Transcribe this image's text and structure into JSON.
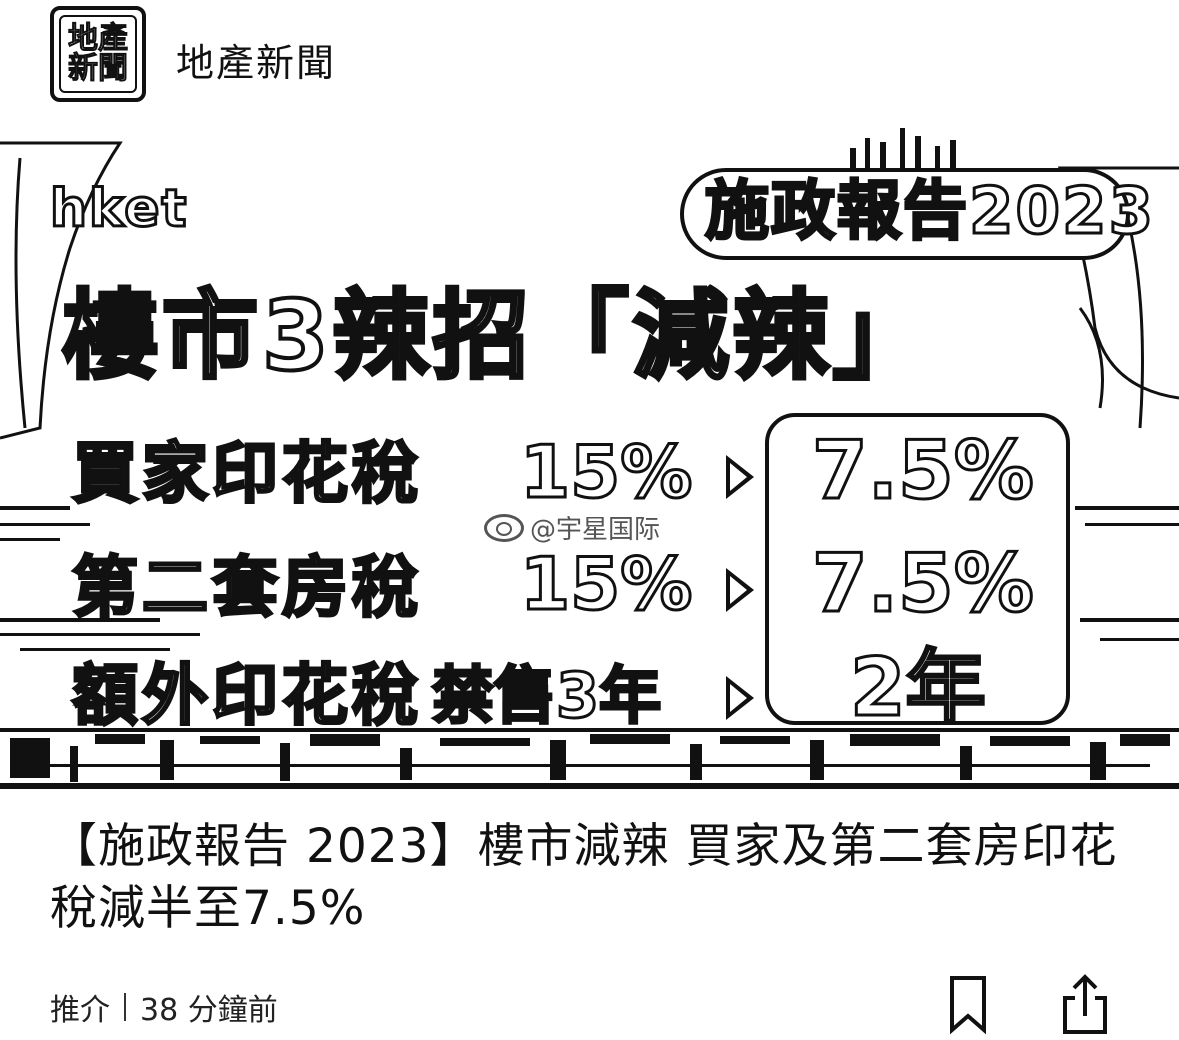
{
  "header": {
    "logo_icon": "dichan-xinwen-logo",
    "logo_chars": [
      "地",
      "產",
      "新",
      "聞"
    ],
    "source_name": "地產新聞"
  },
  "thumbnail": {
    "brand": "hket",
    "banner": "施政報告2023",
    "headline": "樓市3辣招「減辣」",
    "rows": [
      {
        "label": "買家印花稅",
        "old": "15%",
        "new": "7.5%"
      },
      {
        "label": "第二套房稅",
        "old": "15%",
        "new": "7.5%"
      },
      {
        "label": "額外印花稅",
        "old": "禁售3年",
        "new": "2年"
      }
    ],
    "watermark": "@宇星国际",
    "watermark_icon": "weibo-icon"
  },
  "article": {
    "title": "【施政報告 2023】樓市減辣  買家及第二套房印花稅減半至7.5%"
  },
  "meta": {
    "tag": "推介",
    "time": "38 分鐘前"
  },
  "actions": {
    "bookmark_icon": "bookmark-icon",
    "share_icon": "share-icon"
  }
}
